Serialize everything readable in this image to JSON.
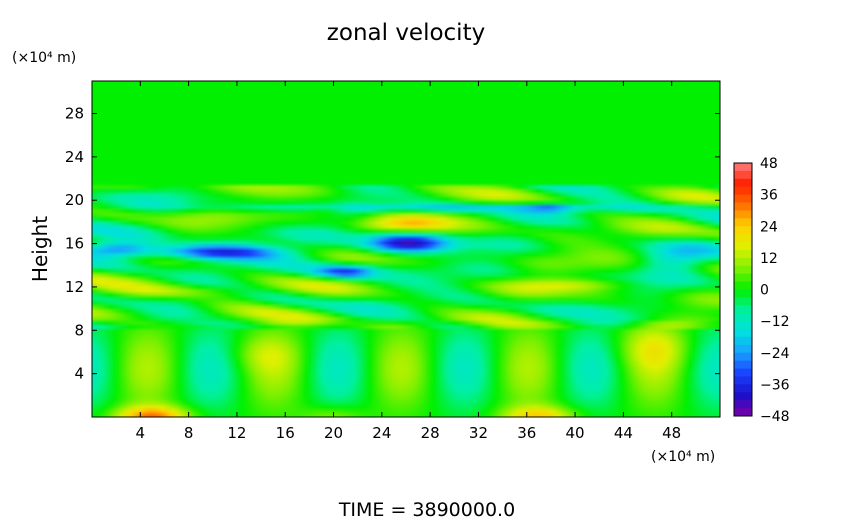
{
  "chart_data": {
    "type": "heatmap",
    "title": "zonal velocity",
    "ylabel": "Height",
    "x_unit": "(×10⁴ m)",
    "y_unit": "(×10⁴ m)",
    "xlim": [
      0,
      52
    ],
    "ylim": [
      0,
      31
    ],
    "x_ticks": [
      "4",
      "8",
      "12",
      "16",
      "20",
      "24",
      "28",
      "32",
      "36",
      "40",
      "44",
      "48"
    ],
    "x_tick_values": [
      4,
      8,
      12,
      16,
      20,
      24,
      28,
      32,
      36,
      40,
      44,
      48
    ],
    "y_ticks": [
      "4",
      "8",
      "12",
      "16",
      "20",
      "24",
      "28"
    ],
    "y_tick_values": [
      4,
      8,
      12,
      16,
      20,
      24,
      28
    ],
    "colorbar": {
      "labels": [
        "48",
        "36",
        "24",
        "12",
        "0",
        "−12",
        "−24",
        "−36",
        "−48"
      ],
      "values": [
        48,
        36,
        24,
        12,
        0,
        -12,
        -24,
        -36,
        -48
      ],
      "range": [
        -48,
        48
      ],
      "stops": [
        {
          "v": -48,
          "color": "#7a00a8"
        },
        {
          "v": -40,
          "color": "#1a10c8"
        },
        {
          "v": -32,
          "color": "#1a40ff"
        },
        {
          "v": -24,
          "color": "#1aa0ff"
        },
        {
          "v": -16,
          "color": "#00e0e0"
        },
        {
          "v": -8,
          "color": "#00f0a0"
        },
        {
          "v": 0,
          "color": "#00f000"
        },
        {
          "v": 8,
          "color": "#80f000"
        },
        {
          "v": 16,
          "color": "#e0f000"
        },
        {
          "v": 24,
          "color": "#ffd000"
        },
        {
          "v": 32,
          "color": "#ff7000"
        },
        {
          "v": 40,
          "color": "#ff2000"
        },
        {
          "v": 48,
          "color": "#ff8080"
        }
      ]
    },
    "annotation": "TIME  =  3890000.0"
  }
}
